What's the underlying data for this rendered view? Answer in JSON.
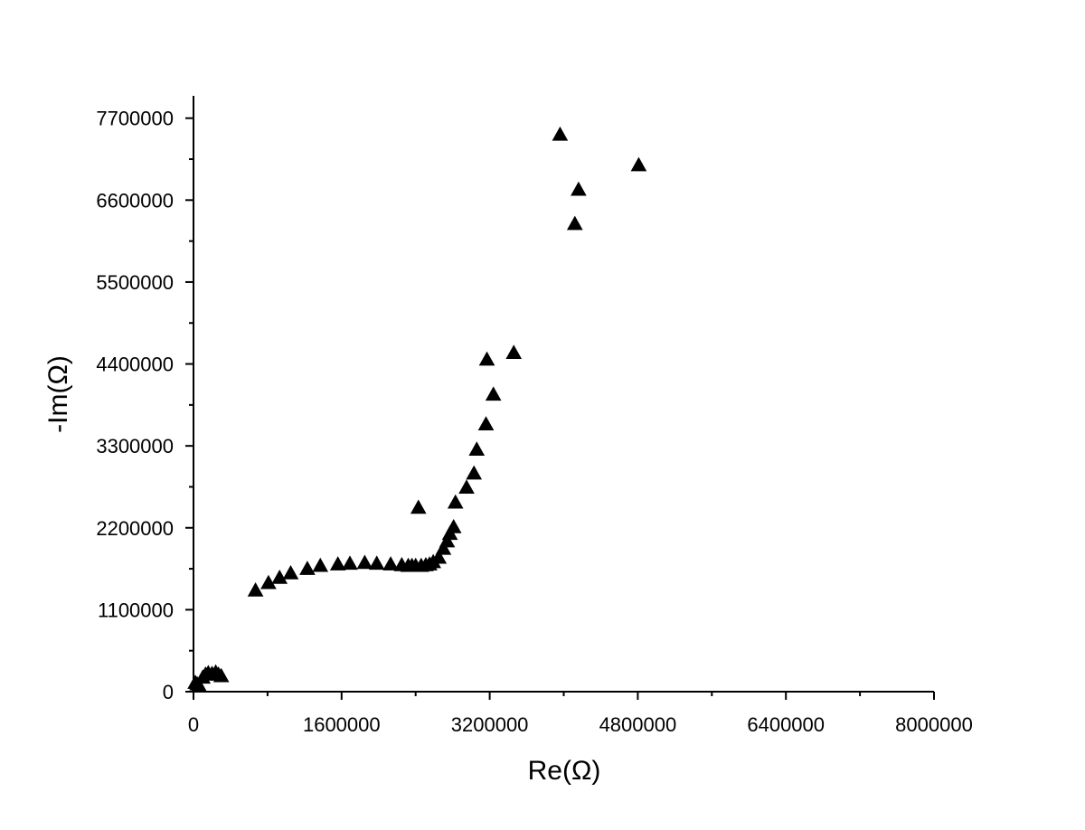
{
  "chart_data": {
    "type": "scatter",
    "xlabel": "Re(Ω)",
    "ylabel": "-Im(Ω)",
    "xlim": [
      0,
      8000000
    ],
    "ylim": [
      0,
      8000000
    ],
    "x_ticks": [
      0,
      1600000,
      3200000,
      4800000,
      6400000,
      8000000
    ],
    "x_tick_labels": [
      "0",
      "1600000",
      "3200000",
      "4800000",
      "6400000",
      "8000000"
    ],
    "y_ticks": [
      0,
      1100000,
      2200000,
      3300000,
      4400000,
      5500000,
      6600000,
      7700000
    ],
    "y_tick_labels": [
      "0",
      "1100000",
      "2200000",
      "3300000",
      "4400000",
      "5500000",
      "6600000",
      "7700000"
    ],
    "grid": false,
    "marker": "triangle",
    "color": "#000000",
    "series": [
      {
        "x": [
          20000,
          40000,
          60000,
          100000,
          130000,
          160000,
          200000,
          240000,
          270000,
          300000,
          670000,
          810000,
          930000,
          1050000,
          1230000,
          1370000,
          1560000,
          1690000,
          1850000,
          1980000,
          2130000,
          2250000,
          2320000,
          2360000,
          2400000,
          2460000,
          2510000,
          2550000,
          2590000,
          2650000,
          2700000,
          2740000,
          2770000,
          2810000,
          2430000,
          2830000,
          2950000,
          3030000,
          3060000,
          3160000,
          3170000,
          3240000,
          3460000,
          3960000,
          4120000,
          4160000,
          4810000
        ],
        "y": [
          120000,
          100000,
          80000,
          190000,
          230000,
          250000,
          240000,
          260000,
          230000,
          210000,
          1360000,
          1460000,
          1530000,
          1590000,
          1650000,
          1690000,
          1710000,
          1720000,
          1730000,
          1720000,
          1710000,
          1700000,
          1690000,
          1690000,
          1690000,
          1690000,
          1700000,
          1710000,
          1740000,
          1800000,
          1920000,
          2020000,
          2120000,
          2210000,
          2470000,
          2540000,
          2740000,
          2930000,
          3250000,
          3590000,
          4460000,
          3990000,
          4550000,
          7480000,
          6280000,
          6740000,
          7070000
        ]
      }
    ]
  }
}
